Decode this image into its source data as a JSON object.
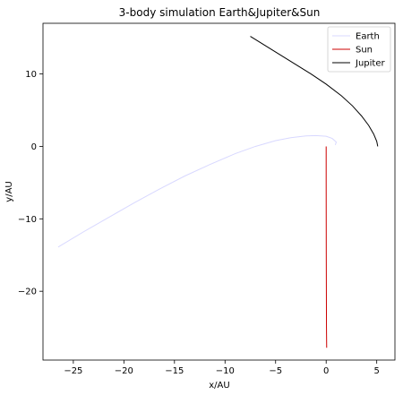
{
  "chart_data": {
    "type": "line",
    "title": "3-body simulation Earth&Jupiter&Sun",
    "xlabel": "x/AU",
    "ylabel": "y/AU",
    "xlim": [
      -28,
      6.8
    ],
    "ylim": [
      -29.5,
      17
    ],
    "xticks": [
      -25,
      -20,
      -15,
      -10,
      -5,
      0,
      5
    ],
    "yticks": [
      -20,
      -10,
      0,
      10
    ],
    "grid": false,
    "legend_position": "top-right",
    "series": [
      {
        "name": "Earth",
        "color": "#d8d8ff",
        "x": [
          -26.5,
          -24,
          -21.5,
          -19,
          -16.5,
          -14,
          -11.5,
          -9,
          -7,
          -5,
          -3.5,
          -2,
          -1,
          0,
          0.6,
          1.0,
          0.9
        ],
        "y": [
          -13.9,
          -11.8,
          -9.8,
          -7.8,
          -5.9,
          -4.1,
          -2.5,
          -1.0,
          0,
          0.8,
          1.2,
          1.45,
          1.5,
          1.4,
          1.1,
          0.6,
          0.2
        ]
      },
      {
        "name": "Sun",
        "color": "#cc0000",
        "x": [
          0,
          0,
          0.005,
          0.01,
          0.02,
          0.03,
          0.05
        ],
        "y": [
          0,
          -5,
          -10,
          -15,
          -20,
          -25,
          -27.8
        ]
      },
      {
        "name": "Jupiter",
        "color": "#000000",
        "x": [
          -7.5,
          -6.0,
          -4.5,
          -3.0,
          -1.5,
          0,
          1.5,
          2.6,
          3.5,
          4.2,
          4.7,
          5.0,
          5.1
        ],
        "y": [
          15.2,
          13.9,
          12.6,
          11.3,
          10.0,
          8.6,
          7.0,
          5.6,
          4.2,
          2.9,
          1.7,
          0.7,
          0
        ]
      }
    ]
  }
}
